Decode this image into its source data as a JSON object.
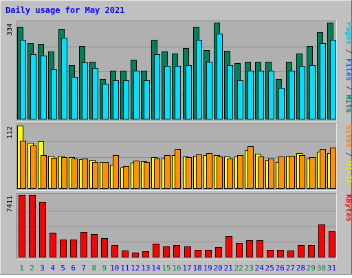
{
  "chart_data": {
    "type": "bar",
    "title": "Daily usage for May 2021",
    "categories": [
      "1",
      "2",
      "3",
      "4",
      "5",
      "6",
      "7",
      "8",
      "9",
      "10",
      "11",
      "12",
      "13",
      "14",
      "15",
      "16",
      "17",
      "18",
      "19",
      "20",
      "21",
      "22",
      "23",
      "24",
      "25",
      "26",
      "27",
      "28",
      "29",
      "30",
      "31"
    ],
    "weekend_days": [
      "1",
      "2",
      "8",
      "9",
      "15",
      "16",
      "22",
      "23",
      "29",
      "30"
    ],
    "panels": [
      {
        "id": "hits-files-pages",
        "ymax_label": "334",
        "ymax": 334,
        "side_label_parts": [
          {
            "text": "Pages",
            "color": "#00c0e0"
          },
          {
            "text": " / ",
            "color": "#404040"
          },
          {
            "text": "Files",
            "color": "#0060ff"
          },
          {
            "text": " / ",
            "color": "#404040"
          },
          {
            "text": "Hits",
            "color": "#008060"
          }
        ],
        "series": [
          {
            "name": "Hits",
            "color": "#00805c",
            "values": [
              320,
              264,
              260,
              234,
              313,
              187,
              254,
              200,
              140,
              167,
              167,
              207,
              167,
              274,
              234,
              227,
              247,
              320,
              240,
              334,
              237,
              194,
              200,
              200,
              200,
              140,
              200,
              227,
              254,
              300,
              334
            ]
          },
          {
            "name": "Pages",
            "color": "#00e0ff",
            "values": [
              274,
              224,
              220,
              174,
              281,
              147,
              197,
              177,
              124,
              134,
              134,
              167,
              134,
              224,
              184,
              184,
              187,
              274,
              200,
              297,
              187,
              134,
              167,
              167,
              167,
              110,
              167,
              184,
              187,
              264,
              274
            ]
          }
        ]
      },
      {
        "id": "visits-sites",
        "ymax_label": "112",
        "ymax": 112,
        "side_label_parts": [
          {
            "text": "Sites",
            "color": "#ff8000"
          },
          {
            "text": " / ",
            "color": "#404040"
          },
          {
            "text": "Visits",
            "color": "#e0e000"
          }
        ],
        "series": [
          {
            "name": "Visits",
            "color": "#ffff00",
            "values": [
              112,
              82,
              84,
              59,
              59,
              56,
              52,
              51,
              47,
              43,
              38,
              46,
              49,
              56,
              53,
              60,
              57,
              59,
              60,
              60,
              57,
              57,
              68,
              62,
              51,
              47,
              59,
              63,
              54,
              66,
              63
            ]
          },
          {
            "name": "Sites",
            "color": "#ff9000",
            "values": [
              85,
              77,
              60,
              55,
              56,
              53,
              54,
              48,
              48,
              60,
              40,
              50,
              47,
              53,
              60,
              70,
              56,
              61,
              63,
              57,
              54,
              60,
              75,
              57,
              54,
              57,
              58,
              60,
              56,
              70,
              73
            ]
          }
        ]
      },
      {
        "id": "kbytes",
        "ymax_label": "7411",
        "ymax": 7411,
        "side_label_parts": [
          {
            "text": "KBytes",
            "color": "#ff0000"
          }
        ],
        "series": [
          {
            "name": "KBytes",
            "color": "#ff0000",
            "values": [
              7411,
              7411,
              6630,
              2950,
              2100,
              2100,
              3000,
              2750,
              2300,
              1500,
              800,
              600,
              700,
              1600,
              1300,
              1500,
              1300,
              900,
              900,
              1200,
              2500,
              1700,
              2000,
              2000,
              900,
              900,
              800,
              1500,
              1500,
              3900,
              3100
            ]
          }
        ]
      }
    ]
  },
  "colors": {
    "background": "#c0c0c0",
    "panel": "#b0b0b0",
    "title": "#0000ff",
    "weekday_label": "#0000ff",
    "weekend_label": "#008040",
    "bar_border": "#000000"
  }
}
